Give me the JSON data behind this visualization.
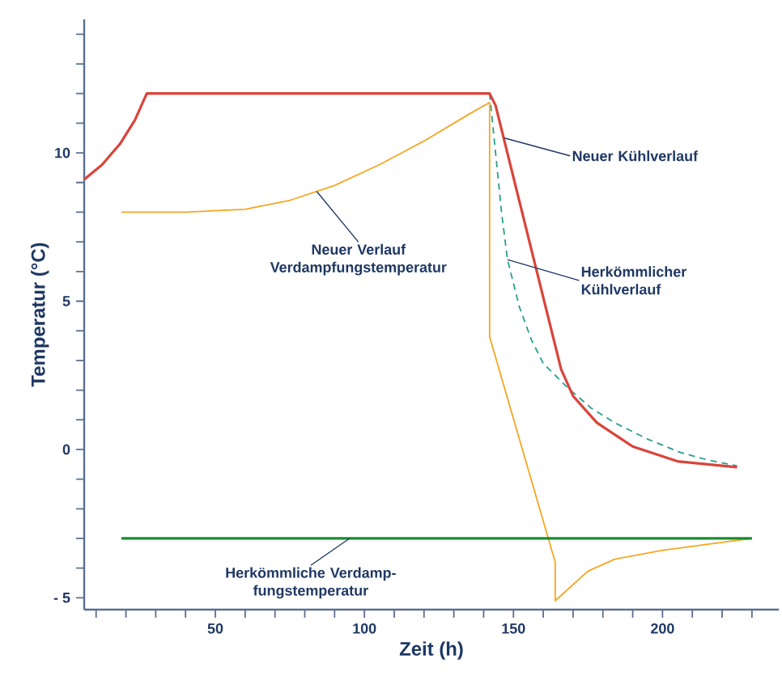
{
  "chart_data": {
    "type": "line",
    "xlabel": "Zeit (h)",
    "ylabel": "Temperatur (°C)",
    "xlim": [
      6,
      239
    ],
    "ylim": [
      -5.4,
      14.5
    ],
    "xticks": [
      {
        "value": 10,
        "label": null
      },
      {
        "value": 20,
        "label": null
      },
      {
        "value": 30,
        "label": null
      },
      {
        "value": 40,
        "label": null
      },
      50,
      {
        "value": 60,
        "label": null
      },
      {
        "value": 70,
        "label": null
      },
      {
        "value": 80,
        "label": null
      },
      {
        "value": 90,
        "label": null
      },
      100,
      {
        "value": 110,
        "label": null
      },
      {
        "value": 120,
        "label": null
      },
      {
        "value": 130,
        "label": null
      },
      {
        "value": 140,
        "label": null
      },
      150,
      {
        "value": 160,
        "label": null
      },
      {
        "value": 170,
        "label": null
      },
      {
        "value": 180,
        "label": null
      },
      {
        "value": 190,
        "label": null
      },
      200,
      {
        "value": 210,
        "label": null
      },
      {
        "value": 220,
        "label": null
      },
      {
        "value": 230,
        "label": null
      }
    ],
    "yticks": [
      {
        "value": -5,
        "label": "- 5"
      },
      {
        "value": -4,
        "label": null
      },
      {
        "value": -3,
        "label": null
      },
      {
        "value": -2,
        "label": null
      },
      {
        "value": -1,
        "label": null
      },
      0,
      {
        "value": 1,
        "label": null
      },
      {
        "value": 2,
        "label": null
      },
      {
        "value": 3,
        "label": null
      },
      {
        "value": 4,
        "label": null
      },
      5,
      {
        "value": 6,
        "label": null
      },
      {
        "value": 7,
        "label": null
      },
      {
        "value": 8,
        "label": null
      },
      {
        "value": 9,
        "label": null
      },
      10,
      {
        "value": 11,
        "label": null
      },
      {
        "value": 12,
        "label": null
      },
      {
        "value": 13,
        "label": null
      },
      {
        "value": 14,
        "label": null
      }
    ],
    "grid": false,
    "marker": "none",
    "series": [
      {
        "color": "#2a9d8f",
        "line_style": "dashed",
        "x": [
          142,
          144,
          146,
          148,
          152,
          156,
          160,
          168,
          176,
          184,
          195,
          206,
          215,
          225
        ],
        "values": [
          12,
          10,
          8,
          6.4,
          4.8,
          3.7,
          2.9,
          2.1,
          1.4,
          0.9,
          0.35,
          -0.1,
          -0.35,
          -0.55
        ]
      },
      {
        "color": "#f5a623",
        "line_style": "solid",
        "x": [
          18.5,
          40,
          60,
          75,
          90,
          105,
          120,
          135,
          142,
          142,
          164,
          164,
          175,
          184,
          200,
          230
        ],
        "values": [
          8,
          8,
          8.1,
          8.4,
          8.9,
          9.6,
          10.4,
          11.3,
          11.7,
          3.8,
          -3.8,
          -5.1,
          -4.1,
          -3.7,
          -3.4,
          -3
        ]
      },
      {
        "color": "#1a8c2e",
        "line_style": "solid",
        "x": [
          18.5,
          230
        ],
        "values": [
          -3,
          -3
        ]
      },
      {
        "color": "#d9443a",
        "line_style": "solid",
        "x": [
          6,
          12,
          18,
          23,
          27,
          142,
          144,
          166,
          170,
          178,
          190,
          205,
          225
        ],
        "values": [
          9.1,
          9.6,
          10.3,
          11.1,
          12,
          12,
          11.6,
          2.7,
          1.8,
          0.9,
          0.1,
          -0.4,
          -0.6
        ]
      }
    ],
    "annotations": [
      {
        "text": "Neuer Kühlverlauf",
        "x": 147,
        "y": 10.5
      },
      {
        "text": "Neuer Verlauf Verdampfungstemperatur",
        "x": 84,
        "y": 8.7
      },
      {
        "text": "Herkömmlicher Kühlverlauf",
        "x": 148,
        "y": 6.4
      },
      {
        "text": "Herkömmliche Verdamp-fungstemperatur",
        "x": 95,
        "y": -3
      }
    ]
  }
}
